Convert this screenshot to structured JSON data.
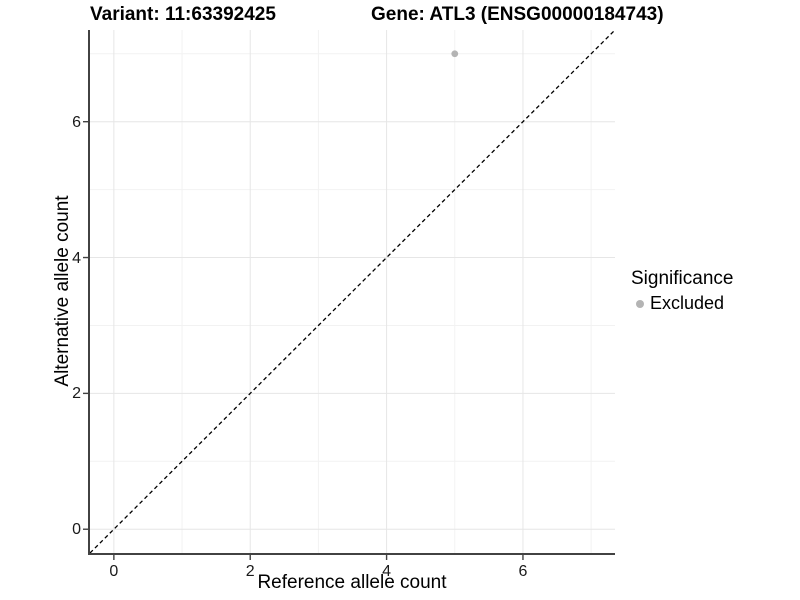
{
  "chart_data": {
    "type": "scatter",
    "titles": {
      "variant": "Variant: 11:63392425",
      "gene": "Gene: ATL3 (ENSG00000184743)"
    },
    "xlabel": "Reference allele count",
    "ylabel": "Alternative allele count",
    "xlim": [
      -0.35,
      7.35
    ],
    "ylim": [
      -0.35,
      7.35
    ],
    "x_ticks": [
      0,
      2,
      4,
      6
    ],
    "y_ticks": [
      0,
      2,
      4,
      6
    ],
    "x_minor_breaks": [
      1,
      3,
      5,
      7
    ],
    "y_minor_breaks": [
      1,
      3,
      5,
      7
    ],
    "grid": "major+minor",
    "points": [
      {
        "x": 5,
        "y": 7,
        "series": "Excluded"
      }
    ],
    "series": [
      {
        "name": "Excluded",
        "color": "#b4b4b4"
      }
    ],
    "identity_line": {
      "style": "dashed",
      "from": -0.35,
      "to": 7.35,
      "color": "#000000"
    },
    "legend": {
      "title": "Significance",
      "position": "right",
      "items": [
        {
          "label": "Excluded",
          "color": "#b4b4b4"
        }
      ]
    },
    "colors": {
      "grid_major": "#e6e6e6",
      "grid_minor": "#f2f2f2",
      "axis_line": "#424242",
      "tick_mark": "#424242",
      "point": "#b4b4b4",
      "text": "#000000",
      "background": "#ffffff"
    }
  }
}
